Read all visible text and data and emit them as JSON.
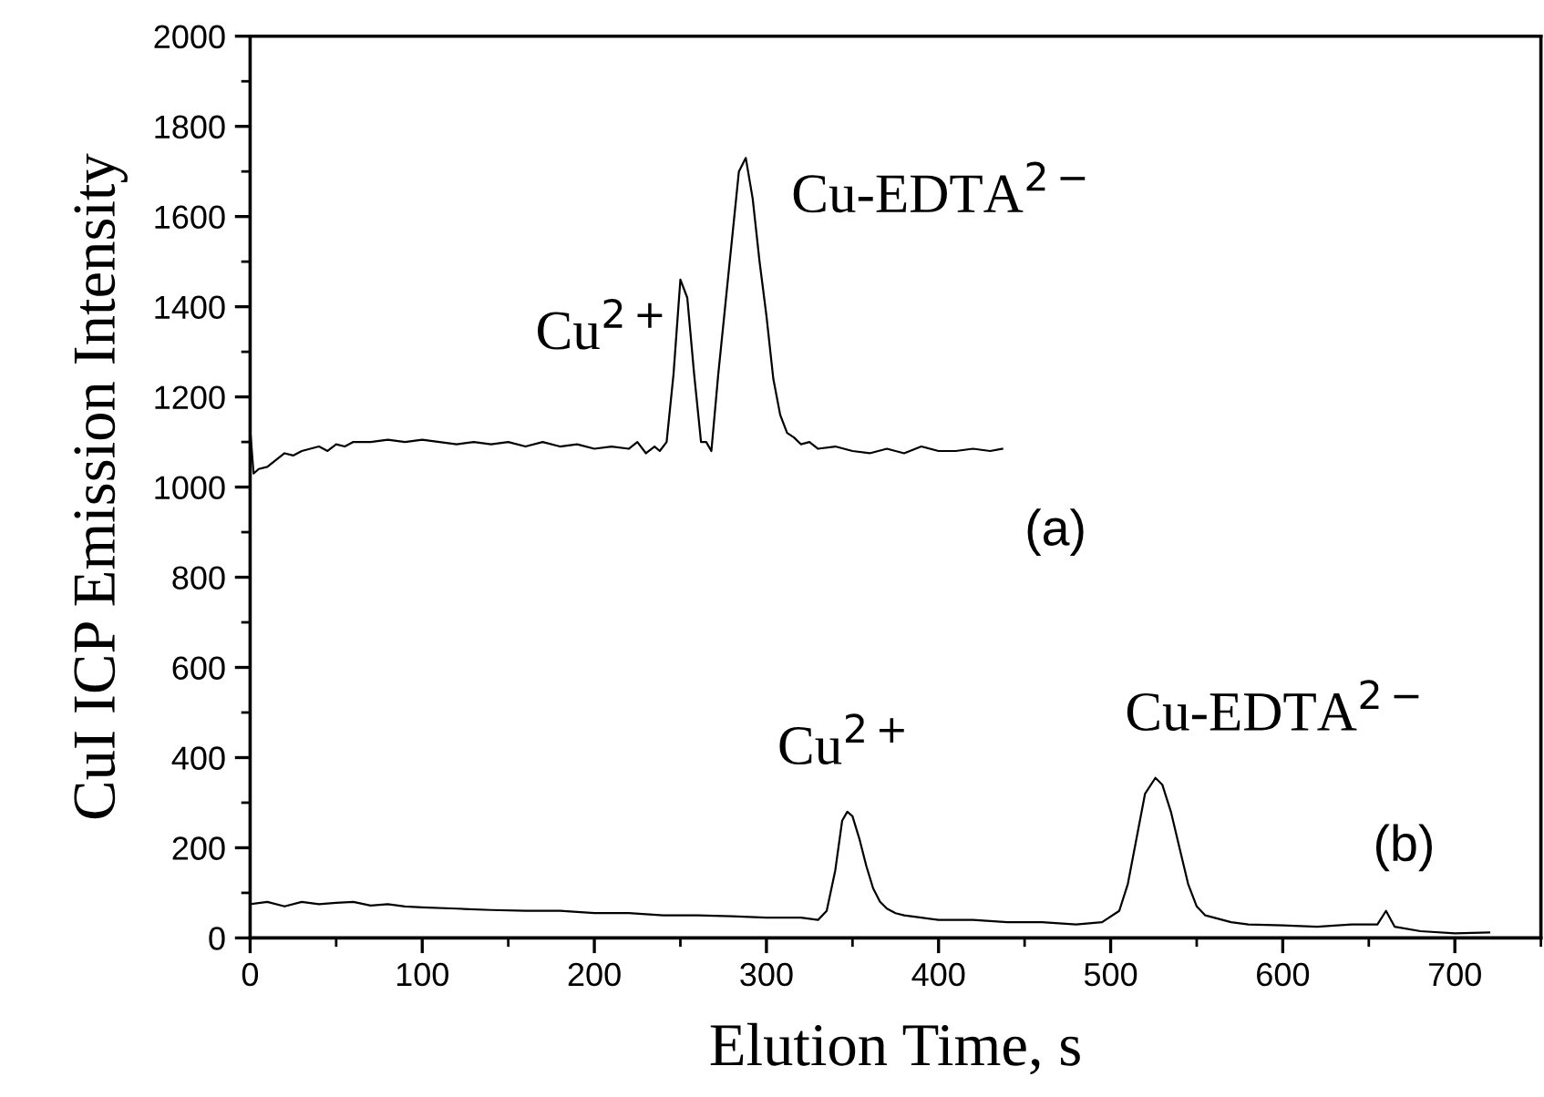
{
  "chart_data": {
    "type": "line",
    "xlabel": "Elution Time, s",
    "ylabel": "CuI ICP Emission Intensity",
    "xlim": [
      0,
      750
    ],
    "ylim": [
      0,
      2000
    ],
    "xticks": [
      0,
      100,
      200,
      300,
      400,
      500,
      600,
      700
    ],
    "yticks": [
      0,
      200,
      400,
      600,
      800,
      1000,
      1200,
      1400,
      1600,
      1800,
      2000
    ],
    "grid": false,
    "legend": false,
    "marker": "none",
    "line_style": "solid",
    "series": [
      {
        "color": "#000000",
        "x": [
          0,
          2,
          5,
          10,
          15,
          20,
          25,
          30,
          35,
          40,
          45,
          50,
          55,
          60,
          70,
          80,
          90,
          100,
          110,
          120,
          130,
          140,
          150,
          160,
          170,
          180,
          190,
          200,
          210,
          220,
          225,
          230,
          235,
          238,
          242,
          246,
          250,
          254,
          258,
          262,
          265,
          268,
          272,
          276,
          280,
          284,
          288,
          292,
          296,
          300,
          304,
          308,
          312,
          316,
          320,
          325,
          330,
          340,
          350,
          360,
          370,
          380,
          390,
          400,
          410,
          420,
          430,
          437
        ],
        "values": [
          1130,
          1030,
          1040,
          1045,
          1060,
          1075,
          1070,
          1080,
          1085,
          1090,
          1080,
          1095,
          1090,
          1100,
          1100,
          1105,
          1100,
          1105,
          1100,
          1095,
          1100,
          1095,
          1100,
          1090,
          1100,
          1090,
          1095,
          1085,
          1090,
          1085,
          1100,
          1075,
          1090,
          1080,
          1100,
          1250,
          1460,
          1420,
          1250,
          1100,
          1100,
          1080,
          1250,
          1400,
          1550,
          1700,
          1730,
          1640,
          1500,
          1380,
          1240,
          1160,
          1120,
          1110,
          1095,
          1100,
          1085,
          1090,
          1080,
          1075,
          1085,
          1075,
          1090,
          1080,
          1080,
          1085,
          1080,
          1085
        ]
      },
      {
        "color": "#000000",
        "x": [
          0,
          10,
          20,
          30,
          40,
          50,
          60,
          70,
          80,
          90,
          100,
          120,
          140,
          160,
          180,
          200,
          220,
          240,
          260,
          280,
          300,
          320,
          330,
          335,
          340,
          344,
          347,
          350,
          354,
          358,
          362,
          366,
          370,
          375,
          380,
          390,
          400,
          420,
          440,
          460,
          480,
          495,
          505,
          510,
          515,
          520,
          526,
          530,
          535,
          540,
          545,
          550,
          555,
          560,
          570,
          580,
          600,
          620,
          640,
          655,
          660,
          665,
          680,
          700,
          720
        ],
        "values": [
          75,
          80,
          70,
          80,
          75,
          78,
          80,
          72,
          75,
          70,
          68,
          65,
          62,
          60,
          60,
          55,
          55,
          50,
          50,
          48,
          45,
          45,
          40,
          60,
          150,
          260,
          280,
          270,
          220,
          160,
          110,
          80,
          65,
          55,
          50,
          45,
          40,
          40,
          35,
          35,
          30,
          35,
          60,
          120,
          220,
          320,
          355,
          340,
          280,
          200,
          120,
          70,
          50,
          45,
          35,
          30,
          28,
          25,
          30,
          30,
          60,
          25,
          15,
          10,
          12
        ]
      }
    ],
    "annotations": [
      {
        "text": "Cu$^{2+}$",
        "x": 250,
        "y": 1460
      },
      {
        "text": "Cu-EDTA$^{2−}$",
        "x": 288,
        "y": 1730
      },
      {
        "text": "Cu$^{2+}$",
        "x": 347,
        "y": 280
      },
      {
        "text": "Cu-EDTA$^{2−}$",
        "x": 526,
        "y": 355
      },
      "(a)",
      "(b)"
    ]
  }
}
